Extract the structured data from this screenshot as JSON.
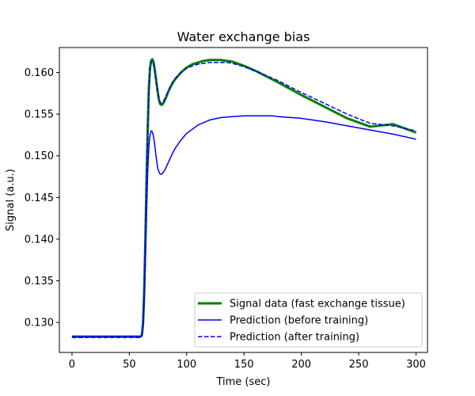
{
  "chart_data": {
    "type": "line",
    "title": "Water exchange bias",
    "xlabel": "Time (sec)",
    "ylabel": "Signal (a.u.)",
    "xlim": [
      -11,
      310
    ],
    "ylim": [
      0.1264,
      0.163
    ],
    "xticks": [
      0,
      50,
      100,
      150,
      200,
      250,
      300
    ],
    "xtick_labels": [
      "0",
      "50",
      "100",
      "150",
      "200",
      "250",
      "300"
    ],
    "yticks": [
      0.13,
      0.135,
      0.14,
      0.145,
      0.15,
      0.155,
      0.16
    ],
    "ytick_labels": [
      "0.130",
      "0.135",
      "0.140",
      "0.145",
      "0.150",
      "0.155",
      "0.160"
    ],
    "grid": false,
    "legend_position": "lower-right",
    "series": [
      {
        "name": "Signal data (fast exchange tissue)",
        "color": "#008000",
        "style": "solid",
        "linewidth": 3,
        "x": [
          0,
          60,
          61,
          62,
          63,
          64,
          65,
          66,
          67,
          68,
          69,
          70,
          71,
          72,
          73,
          74,
          75,
          76,
          77,
          78,
          79,
          80,
          81,
          82,
          84,
          86,
          88,
          90,
          95,
          100,
          105,
          110,
          115,
          120,
          125,
          130,
          135,
          140,
          150,
          160,
          170,
          180,
          200,
          220,
          240,
          260,
          280,
          300
        ],
        "y": [
          0.1283,
          0.1283,
          0.1285,
          0.13,
          0.134,
          0.14,
          0.147,
          0.153,
          0.158,
          0.1605,
          0.1614,
          0.1616,
          0.1613,
          0.1605,
          0.1595,
          0.1584,
          0.1574,
          0.1566,
          0.1562,
          0.1561,
          0.1562,
          0.1564,
          0.1567,
          0.157,
          0.1577,
          0.1583,
          0.1588,
          0.1592,
          0.16,
          0.1606,
          0.161,
          0.1612,
          0.1614,
          0.1615,
          0.1615,
          0.1615,
          0.1614,
          0.1613,
          0.1608,
          0.1602,
          0.1595,
          0.1588,
          0.1573,
          0.1559,
          0.1545,
          0.1535,
          0.1538,
          0.1528
        ]
      },
      {
        "name": "Prediction (before training)",
        "color": "#0000ff",
        "style": "solid",
        "linewidth": 1.5,
        "x": [
          0,
          60,
          61,
          62,
          63,
          64,
          65,
          66,
          67,
          68,
          69,
          70,
          71,
          72,
          73,
          74,
          75,
          76,
          77,
          78,
          79,
          80,
          81,
          82,
          84,
          86,
          88,
          90,
          95,
          100,
          110,
          120,
          130,
          140,
          150,
          160,
          170,
          175,
          180,
          200,
          220,
          240,
          260,
          280,
          300
        ],
        "y": [
          0.1283,
          0.1283,
          0.1285,
          0.1295,
          0.1325,
          0.1375,
          0.143,
          0.148,
          0.151,
          0.1525,
          0.153,
          0.1529,
          0.1524,
          0.1515,
          0.1503,
          0.1492,
          0.1484,
          0.148,
          0.1478,
          0.1478,
          0.1479,
          0.1481,
          0.1483,
          0.1486,
          0.1492,
          0.1498,
          0.1504,
          0.1509,
          0.1519,
          0.1527,
          0.1537,
          0.1543,
          0.1546,
          0.1547,
          0.1548,
          0.1548,
          0.1548,
          0.1548,
          0.1547,
          0.1545,
          0.1541,
          0.1536,
          0.1531,
          0.1526,
          0.152
        ]
      },
      {
        "name": "Prediction (after training)",
        "color": "#0000ff",
        "style": "dashed",
        "linewidth": 1.5,
        "x": [
          0,
          60,
          61,
          62,
          63,
          64,
          65,
          66,
          67,
          68,
          69,
          70,
          71,
          72,
          73,
          74,
          75,
          76,
          77,
          78,
          79,
          80,
          81,
          82,
          84,
          86,
          88,
          90,
          95,
          100,
          105,
          110,
          115,
          120,
          125,
          130,
          135,
          140,
          150,
          160,
          170,
          180,
          200,
          220,
          240,
          260,
          280,
          300
        ],
        "y": [
          0.1282,
          0.1282,
          0.1284,
          0.1298,
          0.1338,
          0.1398,
          0.1468,
          0.1528,
          0.1578,
          0.1603,
          0.1612,
          0.1614,
          0.1611,
          0.1603,
          0.1594,
          0.1584,
          0.1575,
          0.1568,
          0.1564,
          0.1563,
          0.1564,
          0.1566,
          0.1569,
          0.1572,
          0.1578,
          0.1584,
          0.1589,
          0.1593,
          0.16,
          0.1605,
          0.1608,
          0.161,
          0.1611,
          0.1612,
          0.1612,
          0.1612,
          0.1612,
          0.1611,
          0.1607,
          0.1602,
          0.1596,
          0.159,
          0.1576,
          0.1563,
          0.155,
          0.1539,
          0.1536,
          0.153
        ]
      }
    ]
  }
}
